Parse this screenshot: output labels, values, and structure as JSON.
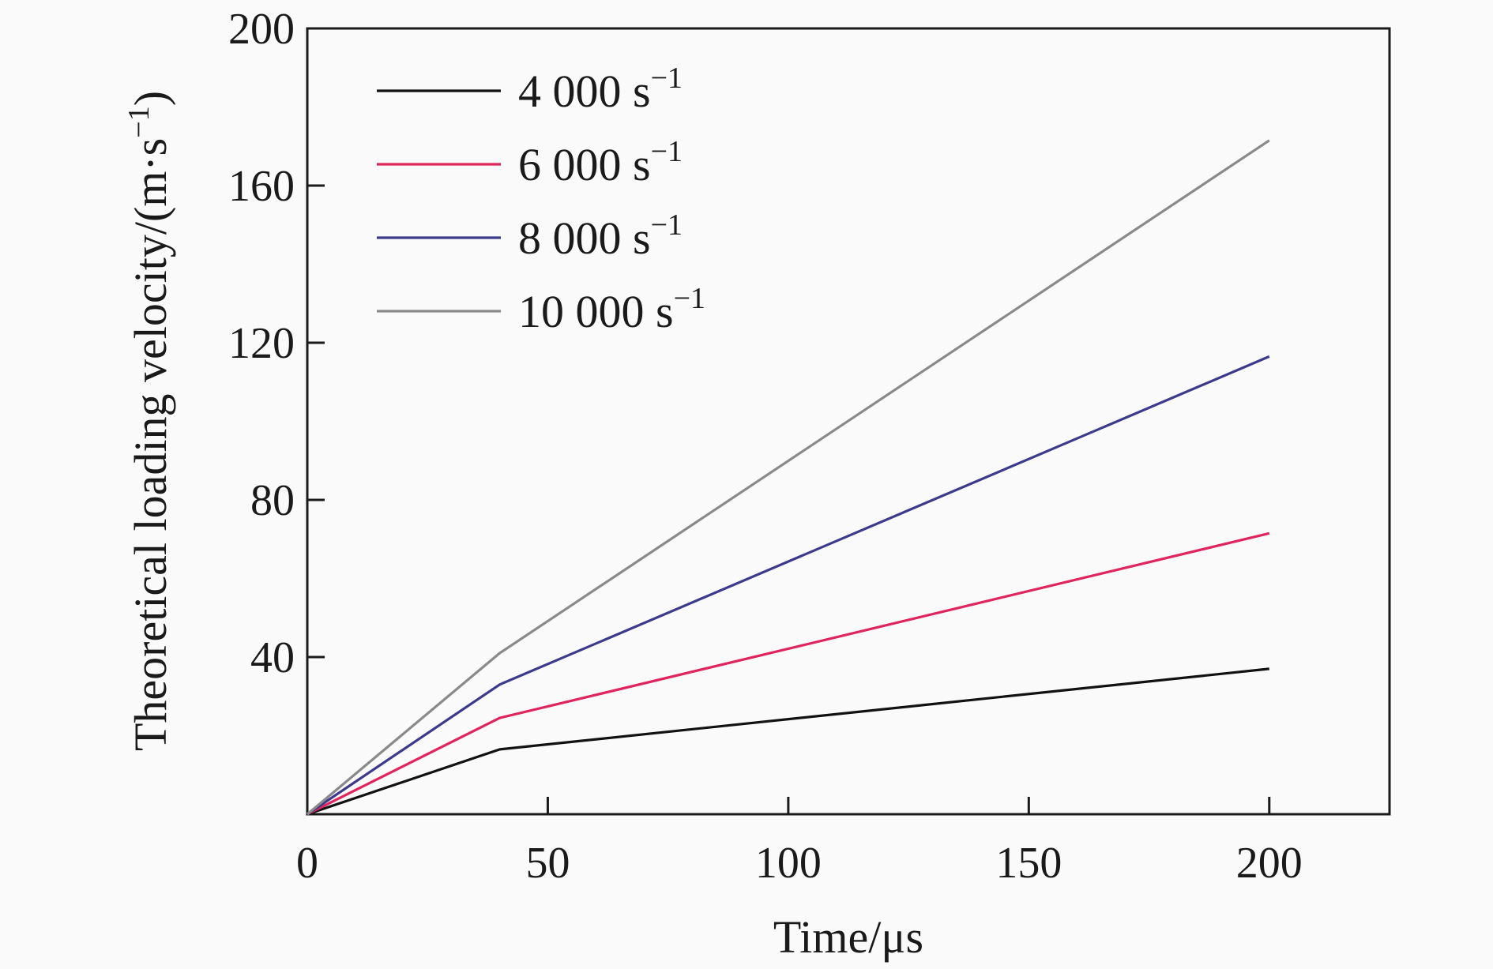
{
  "chart_data": {
    "type": "line",
    "xlabel": "Time/μs",
    "ylabel": "Theoretical loading velocity/(m·s",
    "ylabel_sup": "−1",
    "ylabel_close": ")",
    "xlim": [
      0,
      225
    ],
    "ylim": [
      0,
      200
    ],
    "xticks": [
      0,
      50,
      100,
      150,
      200
    ],
    "yticks": [
      40,
      80,
      120,
      160,
      200
    ],
    "legend_position": "top-left",
    "grid": false,
    "series": [
      {
        "name": "4 000 s",
        "name_sup": "−1",
        "color": "#111111",
        "x": [
          0,
          40,
          200
        ],
        "y": [
          0,
          16.5,
          37
        ]
      },
      {
        "name": "6 000 s",
        "name_sup": "−1",
        "color": "#e0245e",
        "x": [
          0,
          40,
          200
        ],
        "y": [
          0,
          24.5,
          71.5
        ]
      },
      {
        "name": "8 000 s",
        "name_sup": "−1",
        "color": "#3c3a8c",
        "x": [
          0,
          40,
          200
        ],
        "y": [
          0,
          33,
          116.5
        ]
      },
      {
        "name": "10 000 s",
        "name_sup": "−1",
        "color": "#8a8a8a",
        "x": [
          0,
          40,
          200
        ],
        "y": [
          0,
          41,
          171.5
        ]
      }
    ]
  }
}
